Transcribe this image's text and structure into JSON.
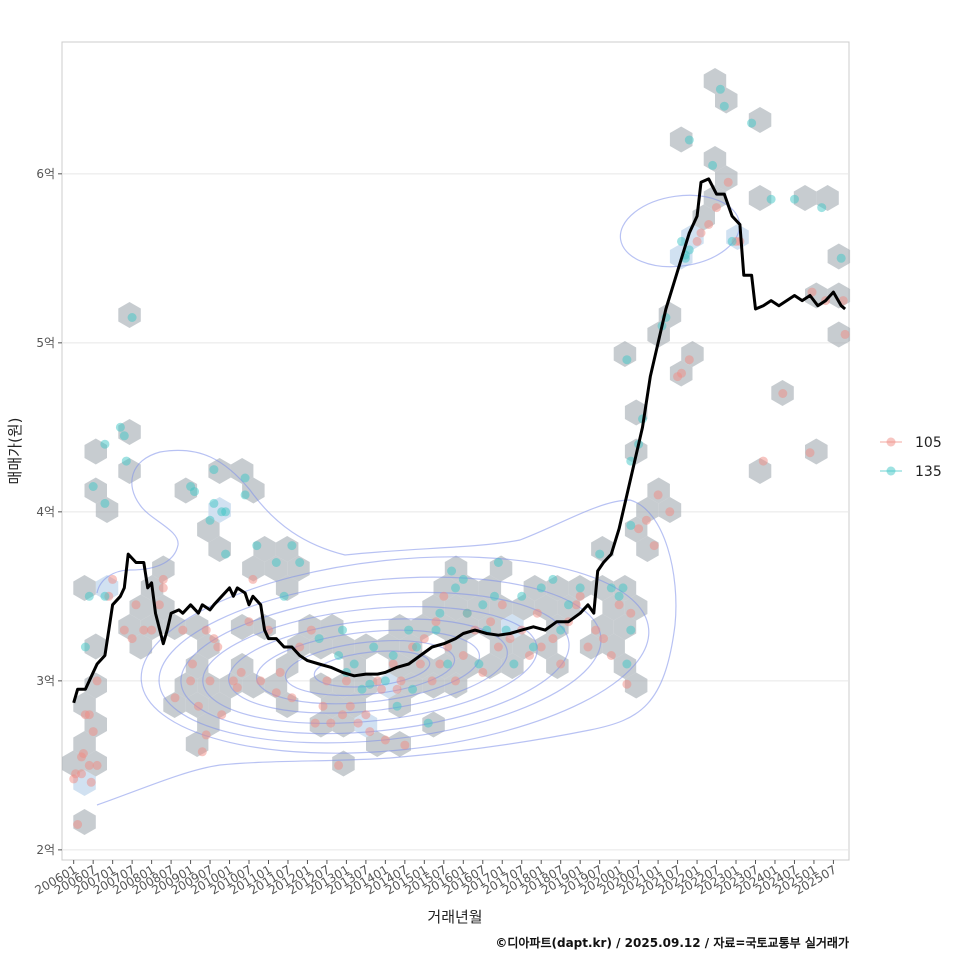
{
  "chart_data": {
    "type": "scatter",
    "xlabel": "거래년월",
    "ylabel": "매매가(원)",
    "caption": "©디아파트(dapt.kr) / 2025.09.12 / 자료=국토교통부 실거래가",
    "x_tick_labels": [
      "200601",
      "200607",
      "200701",
      "200707",
      "200801",
      "200807",
      "200901",
      "200907",
      "201001",
      "201007",
      "201101",
      "201107",
      "201201",
      "201207",
      "201301",
      "201307",
      "201401",
      "201407",
      "201501",
      "201507",
      "201601",
      "201607",
      "201701",
      "201707",
      "201801",
      "201807",
      "201901",
      "201907",
      "202001",
      "202007",
      "202101",
      "202107",
      "202201",
      "202207",
      "202301",
      "202307",
      "202401",
      "202407",
      "202501",
      "202507"
    ],
    "y_ticks": [
      {
        "value": 2.0,
        "label": "2억"
      },
      {
        "value": 3.0,
        "label": "3억"
      },
      {
        "value": 4.0,
        "label": "4억"
      },
      {
        "value": 5.0,
        "label": "5억"
      },
      {
        "value": 6.0,
        "label": "6억"
      }
    ],
    "xlim": [
      2005.7,
      2025.9
    ],
    "ylim": [
      1.94,
      6.78
    ],
    "grid": true,
    "legend_position": "right",
    "colors": {
      "s105": "#F08C84",
      "s135": "#3FC6C6",
      "hex": "#A9B1B7",
      "contour": "#7D8FEA",
      "trend": "#000000"
    },
    "series": [
      {
        "name": "105",
        "points": [
          [
            2006.0,
            2.42
          ],
          [
            2006.05,
            2.45
          ],
          [
            2006.2,
            2.45
          ],
          [
            2006.2,
            2.55
          ],
          [
            2006.25,
            2.57
          ],
          [
            2006.4,
            2.5
          ],
          [
            2006.45,
            2.4
          ],
          [
            2006.5,
            2.7
          ],
          [
            2006.6,
            2.5
          ],
          [
            2006.3,
            2.8
          ],
          [
            2006.4,
            2.8
          ],
          [
            2006.6,
            3.0
          ],
          [
            2006.1,
            2.15
          ],
          [
            2006.9,
            3.5
          ],
          [
            2007.0,
            3.6
          ],
          [
            2007.3,
            3.3
          ],
          [
            2007.5,
            3.25
          ],
          [
            2007.6,
            3.45
          ],
          [
            2007.8,
            3.3
          ],
          [
            2008.0,
            3.3
          ],
          [
            2008.2,
            3.45
          ],
          [
            2008.3,
            3.6
          ],
          [
            2008.3,
            3.55
          ],
          [
            2008.6,
            2.9
          ],
          [
            2008.8,
            3.3
          ],
          [
            2009.0,
            3.0
          ],
          [
            2009.05,
            3.1
          ],
          [
            2009.2,
            2.85
          ],
          [
            2009.3,
            2.58
          ],
          [
            2009.4,
            2.68
          ],
          [
            2009.4,
            3.3
          ],
          [
            2009.5,
            3.0
          ],
          [
            2009.6,
            3.25
          ],
          [
            2009.7,
            3.2
          ],
          [
            2009.8,
            2.8
          ],
          [
            2010.1,
            3.0
          ],
          [
            2010.2,
            2.96
          ],
          [
            2010.3,
            3.05
          ],
          [
            2010.5,
            3.35
          ],
          [
            2010.6,
            3.6
          ],
          [
            2010.8,
            3.0
          ],
          [
            2011.0,
            3.3
          ],
          [
            2011.2,
            2.93
          ],
          [
            2011.3,
            3.05
          ],
          [
            2011.6,
            2.9
          ],
          [
            2011.8,
            3.2
          ],
          [
            2012.1,
            3.3
          ],
          [
            2012.2,
            2.75
          ],
          [
            2012.4,
            2.85
          ],
          [
            2012.5,
            3.0
          ],
          [
            2012.6,
            2.75
          ],
          [
            2012.8,
            2.5
          ],
          [
            2012.9,
            2.8
          ],
          [
            2013.0,
            3.0
          ],
          [
            2013.1,
            2.85
          ],
          [
            2013.3,
            2.75
          ],
          [
            2013.5,
            2.8
          ],
          [
            2013.6,
            2.7
          ],
          [
            2013.8,
            3.0
          ],
          [
            2013.9,
            2.95
          ],
          [
            2014.0,
            2.65
          ],
          [
            2014.2,
            3.1
          ],
          [
            2014.3,
            2.95
          ],
          [
            2014.4,
            3.0
          ],
          [
            2014.5,
            2.62
          ],
          [
            2014.7,
            3.2
          ],
          [
            2014.9,
            3.1
          ],
          [
            2015.0,
            3.25
          ],
          [
            2015.2,
            3.0
          ],
          [
            2015.3,
            3.35
          ],
          [
            2015.4,
            3.1
          ],
          [
            2015.5,
            3.5
          ],
          [
            2015.6,
            3.2
          ],
          [
            2015.8,
            3.0
          ],
          [
            2016.0,
            3.15
          ],
          [
            2016.1,
            3.4
          ],
          [
            2016.3,
            3.3
          ],
          [
            2016.5,
            3.05
          ],
          [
            2016.7,
            3.35
          ],
          [
            2016.9,
            3.2
          ],
          [
            2017.0,
            3.45
          ],
          [
            2017.2,
            3.25
          ],
          [
            2017.5,
            3.3
          ],
          [
            2017.7,
            3.15
          ],
          [
            2017.9,
            3.4
          ],
          [
            2018.0,
            3.2
          ],
          [
            2018.3,
            3.25
          ],
          [
            2018.5,
            3.1
          ],
          [
            2018.7,
            3.35
          ],
          [
            2018.9,
            3.45
          ],
          [
            2019.0,
            3.5
          ],
          [
            2019.2,
            3.2
          ],
          [
            2019.4,
            3.3
          ],
          [
            2019.6,
            3.25
          ],
          [
            2019.8,
            3.15
          ],
          [
            2020.0,
            3.45
          ],
          [
            2020.2,
            2.98
          ],
          [
            2020.3,
            3.4
          ],
          [
            2020.5,
            3.9
          ],
          [
            2020.7,
            3.95
          ],
          [
            2020.9,
            3.8
          ],
          [
            2021.0,
            4.1
          ],
          [
            2021.3,
            4.0
          ],
          [
            2021.5,
            4.8
          ],
          [
            2021.6,
            4.82
          ],
          [
            2021.8,
            4.9
          ],
          [
            2022.0,
            5.6
          ],
          [
            2022.1,
            5.65
          ],
          [
            2022.3,
            5.7
          ],
          [
            2022.5,
            5.8
          ],
          [
            2022.8,
            5.95
          ],
          [
            2023.0,
            5.6
          ],
          [
            2023.1,
            5.6
          ],
          [
            2023.7,
            4.3
          ],
          [
            2024.2,
            4.7
          ],
          [
            2024.9,
            4.35
          ],
          [
            2024.95,
            5.3
          ],
          [
            2025.3,
            5.25
          ],
          [
            2025.75,
            5.25
          ],
          [
            2025.8,
            5.05
          ]
        ]
      },
      {
        "name": "135",
        "points": [
          [
            2006.3,
            3.2
          ],
          [
            2006.4,
            3.5
          ],
          [
            2006.5,
            4.15
          ],
          [
            2006.8,
            3.5
          ],
          [
            2006.8,
            4.4
          ],
          [
            2006.8,
            4.05
          ],
          [
            2007.2,
            4.5
          ],
          [
            2007.3,
            4.45
          ],
          [
            2007.35,
            4.3
          ],
          [
            2007.5,
            5.15
          ],
          [
            2009.0,
            4.15
          ],
          [
            2009.1,
            4.12
          ],
          [
            2009.5,
            3.95
          ],
          [
            2009.6,
            4.05
          ],
          [
            2009.6,
            4.25
          ],
          [
            2009.8,
            4.0
          ],
          [
            2009.9,
            4.0
          ],
          [
            2009.9,
            3.75
          ],
          [
            2010.4,
            4.2
          ],
          [
            2010.4,
            4.1
          ],
          [
            2010.7,
            3.8
          ],
          [
            2011.2,
            3.7
          ],
          [
            2011.4,
            3.5
          ],
          [
            2011.6,
            3.8
          ],
          [
            2011.8,
            3.7
          ],
          [
            2012.3,
            3.25
          ],
          [
            2012.8,
            3.15
          ],
          [
            2012.9,
            3.3
          ],
          [
            2013.0,
            3.05
          ],
          [
            2013.2,
            3.1
          ],
          [
            2013.4,
            2.95
          ],
          [
            2013.6,
            2.98
          ],
          [
            2013.7,
            3.2
          ],
          [
            2014.0,
            3.0
          ],
          [
            2014.2,
            3.15
          ],
          [
            2014.3,
            2.85
          ],
          [
            2014.6,
            3.3
          ],
          [
            2014.7,
            2.95
          ],
          [
            2014.8,
            3.2
          ],
          [
            2015.1,
            2.75
          ],
          [
            2015.3,
            3.3
          ],
          [
            2015.4,
            3.4
          ],
          [
            2015.6,
            3.1
          ],
          [
            2015.7,
            3.65
          ],
          [
            2015.8,
            3.55
          ],
          [
            2016.0,
            3.6
          ],
          [
            2016.1,
            3.4
          ],
          [
            2016.4,
            3.1
          ],
          [
            2016.5,
            3.45
          ],
          [
            2016.6,
            3.3
          ],
          [
            2016.8,
            3.5
          ],
          [
            2016.9,
            3.7
          ],
          [
            2017.1,
            3.3
          ],
          [
            2017.3,
            3.1
          ],
          [
            2017.5,
            3.5
          ],
          [
            2017.8,
            3.2
          ],
          [
            2018.0,
            3.55
          ],
          [
            2018.3,
            3.6
          ],
          [
            2018.5,
            3.3
          ],
          [
            2018.7,
            3.45
          ],
          [
            2019.0,
            3.55
          ],
          [
            2019.5,
            3.75
          ],
          [
            2019.8,
            3.55
          ],
          [
            2020.0,
            3.5
          ],
          [
            2020.1,
            3.55
          ],
          [
            2020.2,
            3.1
          ],
          [
            2020.3,
            3.3
          ],
          [
            2020.3,
            3.92
          ],
          [
            2020.3,
            4.3
          ],
          [
            2020.5,
            4.4
          ],
          [
            2020.6,
            4.55
          ],
          [
            2020.2,
            4.9
          ],
          [
            2021.1,
            5.1
          ],
          [
            2021.2,
            5.15
          ],
          [
            2021.6,
            5.6
          ],
          [
            2021.7,
            5.5
          ],
          [
            2021.7,
            5.52
          ],
          [
            2021.8,
            5.55
          ],
          [
            2021.8,
            6.2
          ],
          [
            2022.4,
            6.05
          ],
          [
            2022.6,
            6.5
          ],
          [
            2022.7,
            6.4
          ],
          [
            2023.4,
            6.3
          ],
          [
            2023.9,
            5.85
          ],
          [
            2024.5,
            5.85
          ],
          [
            2025.2,
            5.8
          ],
          [
            2025.7,
            5.5
          ],
          [
            2022.9,
            5.6
          ]
        ]
      }
    ],
    "trend": [
      [
        2006.0,
        2.87
      ],
      [
        2006.1,
        2.95
      ],
      [
        2006.3,
        2.95
      ],
      [
        2006.5,
        3.05
      ],
      [
        2006.6,
        3.1
      ],
      [
        2006.8,
        3.15
      ],
      [
        2006.9,
        3.3
      ],
      [
        2007.0,
        3.45
      ],
      [
        2007.2,
        3.5
      ],
      [
        2007.3,
        3.55
      ],
      [
        2007.4,
        3.75
      ],
      [
        2007.6,
        3.7
      ],
      [
        2007.8,
        3.7
      ],
      [
        2007.9,
        3.55
      ],
      [
        2008.0,
        3.58
      ],
      [
        2008.1,
        3.4
      ],
      [
        2008.3,
        3.22
      ],
      [
        2008.4,
        3.3
      ],
      [
        2008.5,
        3.4
      ],
      [
        2008.7,
        3.42
      ],
      [
        2008.8,
        3.4
      ],
      [
        2009.0,
        3.45
      ],
      [
        2009.2,
        3.4
      ],
      [
        2009.3,
        3.45
      ],
      [
        2009.5,
        3.42
      ],
      [
        2009.6,
        3.45
      ],
      [
        2009.8,
        3.5
      ],
      [
        2010.0,
        3.55
      ],
      [
        2010.1,
        3.5
      ],
      [
        2010.2,
        3.55
      ],
      [
        2010.4,
        3.52
      ],
      [
        2010.5,
        3.45
      ],
      [
        2010.6,
        3.5
      ],
      [
        2010.8,
        3.45
      ],
      [
        2010.9,
        3.3
      ],
      [
        2011.0,
        3.25
      ],
      [
        2011.2,
        3.25
      ],
      [
        2011.4,
        3.2
      ],
      [
        2011.6,
        3.2
      ],
      [
        2011.8,
        3.15
      ],
      [
        2012.0,
        3.12
      ],
      [
        2012.3,
        3.1
      ],
      [
        2012.6,
        3.08
      ],
      [
        2012.9,
        3.05
      ],
      [
        2013.2,
        3.03
      ],
      [
        2013.5,
        3.04
      ],
      [
        2013.8,
        3.04
      ],
      [
        2014.0,
        3.05
      ],
      [
        2014.3,
        3.08
      ],
      [
        2014.6,
        3.1
      ],
      [
        2014.9,
        3.15
      ],
      [
        2015.2,
        3.2
      ],
      [
        2015.5,
        3.22
      ],
      [
        2015.8,
        3.25
      ],
      [
        2016.0,
        3.28
      ],
      [
        2016.3,
        3.3
      ],
      [
        2016.6,
        3.28
      ],
      [
        2016.9,
        3.27
      ],
      [
        2017.2,
        3.28
      ],
      [
        2017.5,
        3.3
      ],
      [
        2017.8,
        3.32
      ],
      [
        2018.1,
        3.3
      ],
      [
        2018.4,
        3.35
      ],
      [
        2018.7,
        3.35
      ],
      [
        2019.0,
        3.4
      ],
      [
        2019.2,
        3.45
      ],
      [
        2019.35,
        3.4
      ],
      [
        2019.45,
        3.65
      ],
      [
        2019.6,
        3.7
      ],
      [
        2019.8,
        3.75
      ],
      [
        2020.0,
        3.9
      ],
      [
        2020.2,
        4.1
      ],
      [
        2020.4,
        4.3
      ],
      [
        2020.6,
        4.5
      ],
      [
        2020.8,
        4.8
      ],
      [
        2021.0,
        5.0
      ],
      [
        2021.2,
        5.2
      ],
      [
        2021.4,
        5.35
      ],
      [
        2021.6,
        5.5
      ],
      [
        2021.8,
        5.65
      ],
      [
        2022.0,
        5.75
      ],
      [
        2022.1,
        5.95
      ],
      [
        2022.3,
        5.97
      ],
      [
        2022.5,
        5.88
      ],
      [
        2022.7,
        5.88
      ],
      [
        2022.9,
        5.75
      ],
      [
        2023.1,
        5.7
      ],
      [
        2023.2,
        5.4
      ],
      [
        2023.4,
        5.4
      ],
      [
        2023.5,
        5.2
      ],
      [
        2023.7,
        5.22
      ],
      [
        2023.9,
        5.25
      ],
      [
        2024.1,
        5.22
      ],
      [
        2024.3,
        5.25
      ],
      [
        2024.5,
        5.28
      ],
      [
        2024.7,
        5.25
      ],
      [
        2024.9,
        5.28
      ],
      [
        2025.1,
        5.22
      ],
      [
        2025.3,
        5.25
      ],
      [
        2025.5,
        5.3
      ],
      [
        2025.7,
        5.22
      ],
      [
        2025.8,
        5.2
      ]
    ]
  }
}
